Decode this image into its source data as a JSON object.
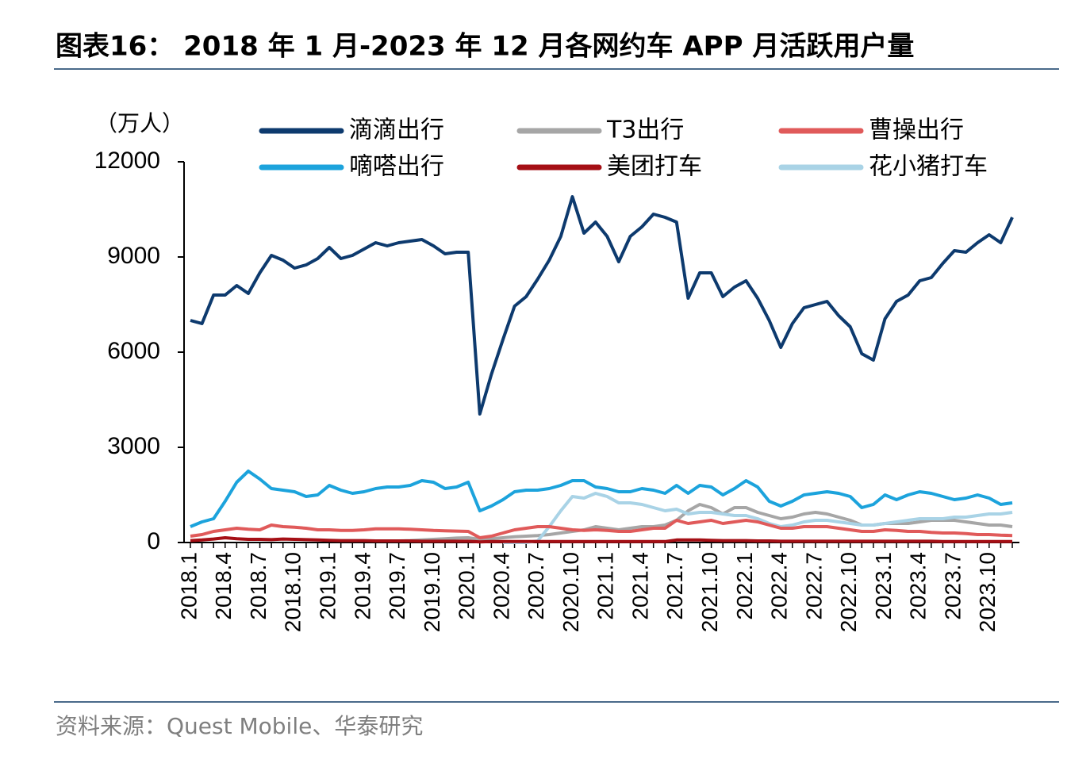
{
  "chart_data": {
    "type": "line",
    "title": "图表16：  2018 年 1 月-2023 年 12 月各网约车 APP 月活跃用户量",
    "y_axis_label": "（万人）",
    "source": "资料来源：Quest Mobile、华泰研究",
    "categories": [
      "2018.1",
      null,
      null,
      "2018.4",
      null,
      null,
      "2018.7",
      null,
      null,
      "2018.10",
      null,
      null,
      "2019.1",
      null,
      null,
      "2019.4",
      null,
      null,
      "2019.7",
      null,
      null,
      "2019.10",
      null,
      null,
      "2020.1",
      null,
      null,
      "2020.4",
      null,
      null,
      "2020.7",
      null,
      null,
      "2020.10",
      null,
      null,
      "2021.1",
      null,
      null,
      "2021.4",
      null,
      null,
      "2021.7",
      null,
      null,
      "2021.10",
      null,
      null,
      "2022.1",
      null,
      null,
      "2022.4",
      null,
      null,
      "2022.7",
      null,
      null,
      "2022.10",
      null,
      null,
      "2023.1",
      null,
      null,
      "2023.4",
      null,
      null,
      "2023.7",
      null,
      null,
      "2023.10",
      null,
      null
    ],
    "ylim": [
      0,
      12000
    ],
    "yticks": [
      0,
      3000,
      6000,
      9000,
      12000
    ],
    "grid": false,
    "legend": "top",
    "series": [
      {
        "name": "滴滴出行",
        "color": "#0d3a6e",
        "values": [
          7000,
          6900,
          7800,
          7800,
          8100,
          7850,
          8500,
          9050,
          8900,
          8650,
          8750,
          8950,
          9300,
          8950,
          9050,
          9250,
          9450,
          9350,
          9450,
          9500,
          9550,
          9350,
          9100,
          9150,
          9150,
          4050,
          5300,
          6400,
          7450,
          7750,
          8300,
          8900,
          9650,
          10900,
          9750,
          10100,
          9650,
          8850,
          9650,
          9950,
          10350,
          10250,
          10100,
          7700,
          8500,
          8500,
          7750,
          8050,
          8250,
          7700,
          7000,
          6150,
          6900,
          7400,
          7500,
          7600,
          7150,
          6800,
          5950,
          5750,
          7050,
          7600,
          7800,
          8250,
          8350,
          8800,
          9200,
          9150,
          9450,
          9700,
          9450,
          10250
        ]
      },
      {
        "name": "T3出行",
        "color": "#a6a6a6",
        "values": [
          null,
          null,
          null,
          null,
          null,
          null,
          null,
          null,
          null,
          null,
          null,
          null,
          null,
          null,
          null,
          null,
          null,
          null,
          50,
          60,
          80,
          100,
          120,
          140,
          150,
          100,
          120,
          150,
          180,
          200,
          220,
          250,
          300,
          350,
          400,
          500,
          450,
          400,
          450,
          500,
          500,
          550,
          700,
          1000,
          1200,
          1100,
          900,
          1100,
          1100,
          950,
          850,
          750,
          800,
          900,
          950,
          900,
          800,
          700,
          550,
          550,
          600,
          600,
          600,
          650,
          700,
          700,
          700,
          650,
          600,
          550,
          550,
          500
        ]
      },
      {
        "name": "曹操出行",
        "color": "#e05a5a",
        "values": [
          200,
          250,
          350,
          400,
          450,
          420,
          400,
          550,
          500,
          480,
          450,
          400,
          400,
          380,
          380,
          400,
          430,
          430,
          430,
          420,
          400,
          380,
          370,
          360,
          350,
          150,
          200,
          300,
          400,
          450,
          500,
          500,
          450,
          400,
          380,
          400,
          380,
          350,
          350,
          400,
          450,
          450,
          700,
          600,
          650,
          700,
          600,
          650,
          700,
          650,
          550,
          450,
          450,
          500,
          500,
          500,
          450,
          400,
          350,
          350,
          400,
          380,
          350,
          350,
          320,
          300,
          300,
          280,
          250,
          250,
          230,
          220
        ]
      },
      {
        "name": "嘀嗒出行",
        "color": "#1ca3dc",
        "values": [
          500,
          650,
          750,
          1300,
          1900,
          2250,
          2000,
          1700,
          1650,
          1600,
          1450,
          1500,
          1800,
          1650,
          1550,
          1600,
          1700,
          1750,
          1750,
          1800,
          1950,
          1900,
          1700,
          1750,
          1900,
          1000,
          1150,
          1350,
          1600,
          1650,
          1650,
          1700,
          1800,
          1950,
          1950,
          1750,
          1700,
          1600,
          1600,
          1700,
          1650,
          1550,
          1800,
          1550,
          1800,
          1750,
          1500,
          1700,
          1950,
          1750,
          1300,
          1150,
          1300,
          1500,
          1550,
          1600,
          1550,
          1450,
          1100,
          1200,
          1500,
          1350,
          1500,
          1600,
          1550,
          1450,
          1350,
          1400,
          1500,
          1400,
          1200,
          1250
        ]
      },
      {
        "name": "美团打车",
        "color": "#a50f15",
        "values": [
          60,
          80,
          110,
          150,
          120,
          100,
          100,
          90,
          110,
          100,
          90,
          80,
          70,
          60,
          60,
          60,
          50,
          50,
          50,
          50,
          40,
          40,
          40,
          40,
          40,
          20,
          30,
          30,
          30,
          30,
          30,
          30,
          30,
          30,
          30,
          30,
          30,
          30,
          30,
          30,
          30,
          30,
          80,
          80,
          80,
          70,
          60,
          60,
          60,
          50,
          50,
          40,
          40,
          40,
          40,
          40,
          40,
          40,
          40,
          40,
          40,
          40,
          40,
          40,
          40,
          30,
          30,
          30,
          30,
          30,
          30,
          30
        ]
      },
      {
        "name": "花小猪打车",
        "color": "#a9d3e6",
        "values": [
          null,
          null,
          null,
          null,
          null,
          null,
          null,
          null,
          null,
          null,
          null,
          null,
          null,
          null,
          null,
          null,
          null,
          null,
          null,
          null,
          null,
          null,
          null,
          null,
          null,
          null,
          null,
          0,
          0,
          0,
          50,
          500,
          1000,
          1450,
          1400,
          1550,
          1450,
          1250,
          1250,
          1200,
          1100,
          1000,
          1050,
          900,
          950,
          950,
          900,
          850,
          850,
          750,
          600,
          500,
          550,
          650,
          700,
          700,
          650,
          600,
          550,
          550,
          600,
          650,
          700,
          750,
          750,
          750,
          800,
          800,
          850,
          900,
          900,
          950
        ]
      }
    ]
  }
}
